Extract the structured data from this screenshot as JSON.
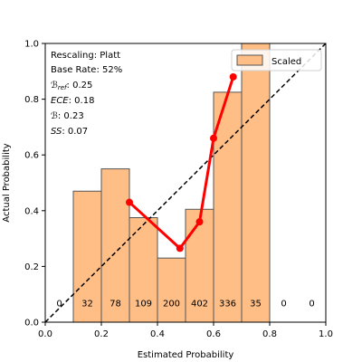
{
  "chart_data": {
    "type": "bar",
    "xlabel": "Estimated Probability",
    "ylabel": "Actual Probability",
    "xlim": [
      0.0,
      1.0
    ],
    "ylim": [
      0.0,
      1.0
    ],
    "xticks": [
      "0.0",
      "0.2",
      "0.4",
      "0.6",
      "0.8",
      "1.0"
    ],
    "yticks": [
      "0.0",
      "0.2",
      "0.4",
      "0.6",
      "0.8",
      "1.0"
    ],
    "grid": false,
    "legend_position": "top-right",
    "bins": [
      {
        "x0": 0.0,
        "x1": 0.1,
        "height": 0.0,
        "count": "0"
      },
      {
        "x0": 0.1,
        "x1": 0.2,
        "height": 0.47,
        "count": "32"
      },
      {
        "x0": 0.2,
        "x1": 0.3,
        "height": 0.55,
        "count": "78"
      },
      {
        "x0": 0.3,
        "x1": 0.4,
        "height": 0.375,
        "count": "109"
      },
      {
        "x0": 0.4,
        "x1": 0.5,
        "height": 0.23,
        "count": "200"
      },
      {
        "x0": 0.5,
        "x1": 0.6,
        "height": 0.405,
        "count": "402"
      },
      {
        "x0": 0.6,
        "x1": 0.7,
        "height": 0.825,
        "count": "336"
      },
      {
        "x0": 0.7,
        "x1": 0.8,
        "height": 1.0,
        "count": "35"
      },
      {
        "x0": 0.8,
        "x1": 0.9,
        "height": 0.0,
        "count": "0"
      },
      {
        "x0": 0.9,
        "x1": 1.0,
        "height": 0.0,
        "count": "0"
      }
    ],
    "series": [
      {
        "name": "Scaled",
        "kind": "bar",
        "color": "#ffbe86",
        "edge_color": "#555555"
      },
      {
        "kind": "line",
        "color": "#ff0000",
        "points": [
          [
            0.3,
            0.43
          ],
          [
            0.48,
            0.265
          ],
          [
            0.55,
            0.36
          ],
          [
            0.6,
            0.66
          ],
          [
            0.67,
            0.88
          ]
        ]
      },
      {
        "kind": "reference-line",
        "style": "dashed",
        "color": "#000000",
        "points": [
          [
            0.0,
            0.0
          ],
          [
            1.0,
            1.0
          ]
        ]
      }
    ],
    "annotations": {
      "rescaling": "Rescaling: Platt",
      "base_rate": "Base Rate: 52%",
      "bref_symbol": "ℬ",
      "bref_sub": "ref",
      "bref_value": ": 0.25",
      "ece_symbol": "ECE",
      "ece_value": ": 0.18",
      "b_symbol": "ℬ",
      "b_value": ": 0.23",
      "ss_symbol": "SS",
      "ss_value": ": 0.07"
    },
    "legend": {
      "label": "Scaled"
    }
  }
}
